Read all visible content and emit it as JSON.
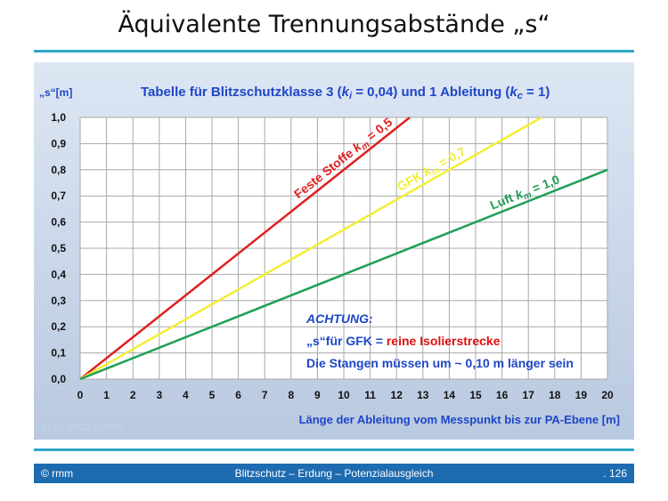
{
  "slide": {
    "title": "Äquivalente Trennungsabstände „s“",
    "date_watermark": "17.07.2013 © rmm"
  },
  "footer": {
    "left": "© rmm",
    "center": "Blitzschutz – Erdung – Potenzialausgleich",
    "right": ". 126"
  },
  "colors": {
    "accent_rule": "#2ea8c9",
    "footer_bg": "#1d6bb0",
    "title_blue": "#1e46c8",
    "attention_red": "#e01010"
  },
  "chart_data": {
    "type": "line",
    "title_parts": [
      "Tabelle für Blitzschutzklasse 3 (",
      "k",
      "i",
      " = 0,04) und 1 Ableitung (",
      "k",
      "c",
      " = 1)"
    ],
    "ylabel": "„s“[m]",
    "xlabel": "Länge der Ableitung vom Messpunkt bis zur PA-Ebene [m]",
    "xlim": [
      0,
      20
    ],
    "ylim": [
      0,
      1.0
    ],
    "x_ticks": [
      0,
      1,
      2,
      3,
      4,
      5,
      6,
      7,
      8,
      9,
      10,
      11,
      12,
      13,
      14,
      15,
      16,
      17,
      18,
      19,
      20
    ],
    "y_ticks": [
      0,
      0.1,
      0.2,
      0.3,
      0.4,
      0.5,
      0.6,
      0.7,
      0.8,
      0.9,
      1.0
    ],
    "y_tick_labels": [
      "0,0",
      "0,1",
      "0,2",
      "0,3",
      "0,4",
      "0,5",
      "0,6",
      "0,7",
      "0,8",
      "0,9",
      "1,0"
    ],
    "x_tick_labels": [
      "0",
      "1",
      "2",
      "3",
      "4",
      "5",
      "6",
      "7",
      "8",
      "9",
      "10",
      "11",
      "12",
      "13",
      "14",
      "15",
      "16",
      "17",
      "18",
      "19",
      "20"
    ],
    "grid": true,
    "series": [
      {
        "name": "Feste Stoffe k = 0,5",
        "label_text": "Feste Stoffe ",
        "label_sym": "k",
        "label_sub": "m",
        "label_val": " = 0,5",
        "color": "#e02020",
        "x": [
          0,
          12.5
        ],
        "y": [
          0,
          1.0
        ],
        "label_at": 10.2
      },
      {
        "name": "GFK k = 0,7",
        "label_text": "GFK ",
        "label_sym": "k",
        "label_sub": "m",
        "label_val": " = 0,7",
        "color": "#f2ef35",
        "x": [
          0,
          17.5
        ],
        "y": [
          0,
          1.0
        ],
        "label_at": 13.5
      },
      {
        "name": "Luft k = 1,0",
        "label_text": "Luft ",
        "label_sym": "k",
        "label_sub": "m",
        "label_val": " = 1,0",
        "color": "#1f9e57",
        "x": [
          0,
          20
        ],
        "y": [
          0,
          0.8
        ],
        "label_at": 17.0
      }
    ],
    "annotation": {
      "heading": "ACHTUNG:",
      "line2_prefix": "„s“für GFK = ",
      "line2_highlight": "reine Isolierstrecke",
      "line3": "Die Stangen müssen um ~ 0,10 m länger sein"
    }
  }
}
